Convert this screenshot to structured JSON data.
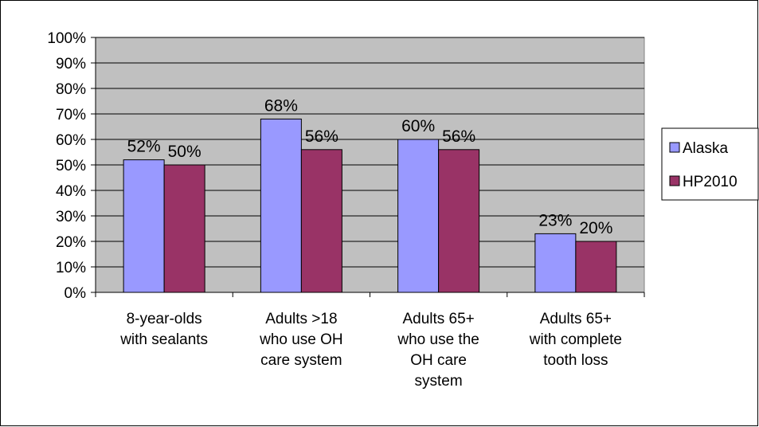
{
  "chart_data": {
    "type": "bar",
    "categories": [
      [
        "8-year-olds",
        "with sealants"
      ],
      [
        "Adults >18",
        "who use OH",
        "care system"
      ],
      [
        "Adults 65+",
        "who use the",
        "OH care",
        "system"
      ],
      [
        "Adults 65+",
        "with complete",
        "tooth loss"
      ]
    ],
    "series": [
      {
        "name": "Alaska",
        "values": [
          52,
          68,
          60,
          23
        ],
        "color": "#9999ff"
      },
      {
        "name": "HP2010",
        "values": [
          50,
          56,
          56,
          20
        ],
        "color": "#993366"
      }
    ],
    "data_labels": {
      "Alaska": [
        "52%",
        "68%",
        "60%",
        "23%"
      ],
      "HP2010": [
        "50%",
        "56%",
        "56%",
        "20%"
      ]
    },
    "y_ticks": [
      "0%",
      "10%",
      "20%",
      "30%",
      "40%",
      "50%",
      "60%",
      "70%",
      "80%",
      "90%",
      "100%"
    ],
    "ylim": [
      0,
      100
    ],
    "grid": true,
    "plot_background": "#c0c0c0",
    "legend_position": "right",
    "title": "",
    "xlabel": "",
    "ylabel": ""
  }
}
